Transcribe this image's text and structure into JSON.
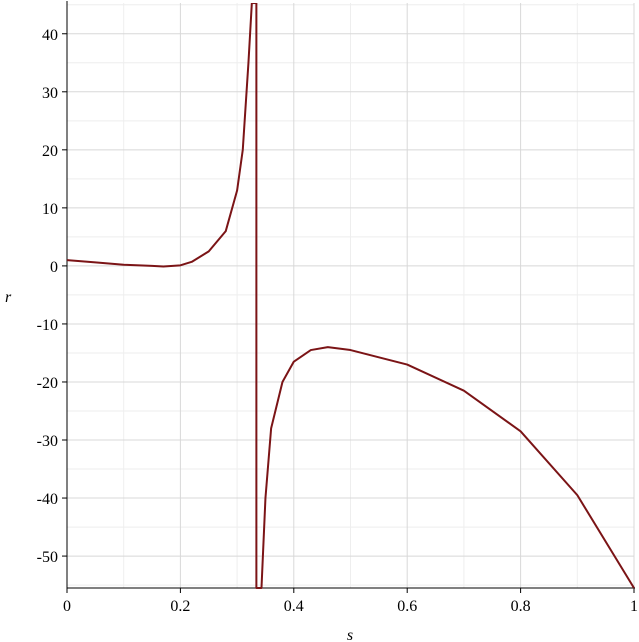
{
  "chart_data": {
    "type": "line",
    "xlabel": "s",
    "ylabel": "r",
    "xlim": [
      0,
      1
    ],
    "ylim": [
      -55.5,
      45.3
    ],
    "xticks": [
      0,
      0.2,
      0.4,
      0.6,
      0.8,
      1
    ],
    "xminorticks": [
      0.1,
      0.3,
      0.5,
      0.7,
      0.9
    ],
    "yticks": [
      -50,
      -40,
      -30,
      -20,
      -10,
      0,
      10,
      20,
      30,
      40
    ],
    "yminorticks": [
      -55,
      -45,
      -35,
      -25,
      -15,
      -5,
      5,
      15,
      25,
      35,
      45
    ],
    "grid": true,
    "series": [
      {
        "color": "#7b1416",
        "x": [
          0,
          0.05,
          0.1,
          0.15,
          0.17,
          0.2,
          0.22,
          0.25,
          0.28,
          0.3,
          0.31,
          0.32,
          0.326,
          0.334,
          0.334,
          0.343,
          0.35,
          0.36,
          0.38,
          0.4,
          0.43,
          0.46,
          0.5,
          0.6,
          0.7,
          0.8,
          0.9,
          1
        ],
        "values": [
          1,
          0.6,
          0.2,
          0,
          -0.1,
          0.1,
          0.7,
          2.5,
          6,
          13,
          20,
          35,
          45.3,
          45.3,
          -55.5,
          -55.5,
          -40,
          -28,
          -20,
          -16.5,
          -14.5,
          -14,
          -14.5,
          -17,
          -21.5,
          -28.5,
          -39.5,
          -55.5
        ]
      }
    ]
  }
}
